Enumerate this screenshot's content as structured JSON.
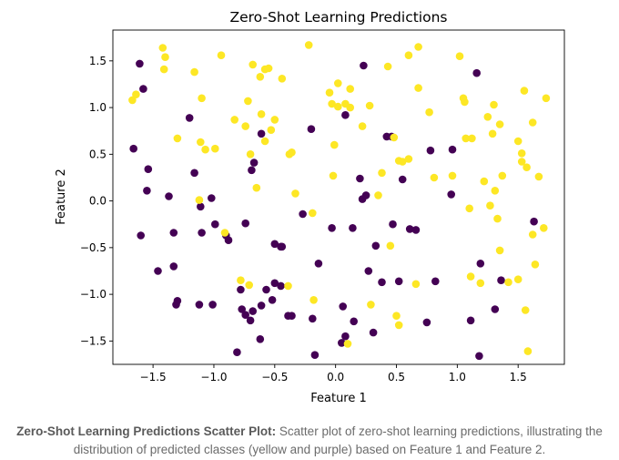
{
  "chart_data": {
    "type": "scatter",
    "title": "Zero-Shot Learning Predictions",
    "xlabel": "Feature 1",
    "ylabel": "Feature 2",
    "xlim": [
      -1.83,
      1.88
    ],
    "ylim": [
      -1.75,
      1.83
    ],
    "xticks": [
      "−1.5",
      "−1.0",
      "−0.5",
      "0.0",
      "0.5",
      "1.0",
      "1.5"
    ],
    "xtick_values": [
      -1.5,
      -1.0,
      -0.5,
      0.0,
      0.5,
      1.0,
      1.5
    ],
    "yticks": [
      "−1.5",
      "−1.0",
      "−0.5",
      "0.0",
      "0.5",
      "1.0",
      "1.5"
    ],
    "ytick_values": [
      -1.5,
      -1.0,
      -0.5,
      0.0,
      0.5,
      1.0,
      1.5
    ],
    "grid": false,
    "legend": "none",
    "series": [
      {
        "color": "#440154",
        "points": [
          [
            -1.66,
            0.56
          ],
          [
            -1.61,
            1.47
          ],
          [
            -1.58,
            1.2
          ],
          [
            -1.6,
            -0.37
          ],
          [
            -1.54,
            0.34
          ],
          [
            -1.55,
            0.11
          ],
          [
            -1.46,
            -0.75
          ],
          [
            -1.37,
            0.05
          ],
          [
            -1.33,
            -0.7
          ],
          [
            -1.31,
            -1.11
          ],
          [
            -1.3,
            -1.07
          ],
          [
            -1.33,
            -0.34
          ],
          [
            -1.2,
            0.89
          ],
          [
            -1.16,
            0.3
          ],
          [
            -1.12,
            -1.11
          ],
          [
            -1.11,
            -0.06
          ],
          [
            -1.1,
            -0.34
          ],
          [
            -1.02,
            0.03
          ],
          [
            -1.01,
            -1.11
          ],
          [
            -0.99,
            -0.25
          ],
          [
            -0.9,
            -0.37
          ],
          [
            -0.88,
            -0.42
          ],
          [
            -0.81,
            -1.62
          ],
          [
            -0.78,
            -0.95
          ],
          [
            -0.77,
            -1.16
          ],
          [
            -0.74,
            -1.22
          ],
          [
            -0.74,
            -0.24
          ],
          [
            -0.7,
            -1.28
          ],
          [
            -0.68,
            -1.18
          ],
          [
            -0.69,
            0.33
          ],
          [
            -0.67,
            0.41
          ],
          [
            -0.62,
            -1.48
          ],
          [
            -0.61,
            -1.12
          ],
          [
            -0.61,
            0.72
          ],
          [
            -0.57,
            -0.95
          ],
          [
            -0.52,
            -1.06
          ],
          [
            -0.5,
            -0.46
          ],
          [
            -0.5,
            -0.88
          ],
          [
            -0.45,
            -0.91
          ],
          [
            -0.45,
            -0.49
          ],
          [
            -0.44,
            -0.49
          ],
          [
            -0.39,
            -1.23
          ],
          [
            -0.36,
            -1.23
          ],
          [
            -0.27,
            -0.14
          ],
          [
            -0.19,
            -1.26
          ],
          [
            -0.14,
            -0.67
          ],
          [
            -0.17,
            -1.65
          ],
          [
            -0.2,
            0.77
          ],
          [
            -0.03,
            -0.29
          ],
          [
            0.06,
            -1.13
          ],
          [
            0.05,
            -1.52
          ],
          [
            0.08,
            -1.45
          ],
          [
            0.08,
            0.92
          ],
          [
            0.14,
            -0.29
          ],
          [
            0.15,
            -1.29
          ],
          [
            0.2,
            0.24
          ],
          [
            0.23,
            1.45
          ],
          [
            0.22,
            0.02
          ],
          [
            0.25,
            0.06
          ],
          [
            0.27,
            -0.75
          ],
          [
            0.33,
            -0.48
          ],
          [
            0.31,
            -1.41
          ],
          [
            0.38,
            -0.87
          ],
          [
            0.42,
            0.69
          ],
          [
            0.46,
            0.69
          ],
          [
            0.47,
            -0.25
          ],
          [
            0.55,
            0.23
          ],
          [
            0.52,
            -0.86
          ],
          [
            0.61,
            -0.3
          ],
          [
            0.66,
            -0.31
          ],
          [
            0.75,
            -1.3
          ],
          [
            0.78,
            0.54
          ],
          [
            0.82,
            -0.86
          ],
          [
            0.96,
            0.55
          ],
          [
            0.95,
            0.07
          ],
          [
            1.11,
            -1.28
          ],
          [
            1.16,
            1.37
          ],
          [
            1.18,
            -1.66
          ],
          [
            1.19,
            -0.67
          ],
          [
            1.31,
            -1.16
          ],
          [
            1.36,
            -0.85
          ],
          [
            1.63,
            -0.22
          ]
        ]
      },
      {
        "color": "#fde725",
        "points": [
          [
            -1.67,
            1.08
          ],
          [
            -1.64,
            1.14
          ],
          [
            -1.42,
            1.64
          ],
          [
            -1.4,
            1.54
          ],
          [
            -1.41,
            1.41
          ],
          [
            -1.3,
            0.67
          ],
          [
            -1.16,
            1.38
          ],
          [
            -1.12,
            0.01
          ],
          [
            -1.11,
            0.63
          ],
          [
            -1.1,
            1.1
          ],
          [
            -1.07,
            0.55
          ],
          [
            -0.99,
            0.56
          ],
          [
            -0.94,
            1.56
          ],
          [
            -0.91,
            -0.34
          ],
          [
            -0.83,
            0.87
          ],
          [
            -0.78,
            -0.85
          ],
          [
            -0.74,
            0.8
          ],
          [
            -0.72,
            1.07
          ],
          [
            -0.71,
            -0.9
          ],
          [
            -0.7,
            0.5
          ],
          [
            -0.68,
            1.46
          ],
          [
            -0.65,
            0.14
          ],
          [
            -0.62,
            1.33
          ],
          [
            -0.61,
            0.93
          ],
          [
            -0.58,
            0.64
          ],
          [
            -0.58,
            1.41
          ],
          [
            -0.55,
            1.42
          ],
          [
            -0.53,
            0.76
          ],
          [
            -0.5,
            0.87
          ],
          [
            -0.44,
            1.31
          ],
          [
            -0.39,
            -0.91
          ],
          [
            -0.38,
            0.5
          ],
          [
            -0.36,
            0.52
          ],
          [
            -0.33,
            0.08
          ],
          [
            -0.18,
            -1.06
          ],
          [
            -0.19,
            -0.13
          ],
          [
            -0.22,
            1.67
          ],
          [
            -0.05,
            1.16
          ],
          [
            -0.03,
            1.04
          ],
          [
            0.02,
            1.01
          ],
          [
            -0.01,
            0.6
          ],
          [
            -0.02,
            0.27
          ],
          [
            0.02,
            1.26
          ],
          [
            0.08,
            1.04
          ],
          [
            0.1,
            -1.53
          ],
          [
            0.12,
            1.2
          ],
          [
            0.12,
            1.0
          ],
          [
            0.22,
            0.8
          ],
          [
            0.28,
            1.02
          ],
          [
            0.29,
            -1.11
          ],
          [
            0.35,
            0.06
          ],
          [
            0.38,
            0.3
          ],
          [
            0.43,
            1.44
          ],
          [
            0.45,
            -0.48
          ],
          [
            0.48,
            0.68
          ],
          [
            0.5,
            -1.23
          ],
          [
            0.52,
            -1.33
          ],
          [
            0.52,
            0.43
          ],
          [
            0.55,
            0.42
          ],
          [
            0.6,
            1.56
          ],
          [
            0.6,
            0.45
          ],
          [
            0.66,
            -0.89
          ],
          [
            0.68,
            1.65
          ],
          [
            0.68,
            1.21
          ],
          [
            0.77,
            0.95
          ],
          [
            0.81,
            0.25
          ],
          [
            0.96,
            0.27
          ],
          [
            1.02,
            1.55
          ],
          [
            1.05,
            1.1
          ],
          [
            1.07,
            0.67
          ],
          [
            1.06,
            1.06
          ],
          [
            1.1,
            -0.08
          ],
          [
            1.11,
            -0.81
          ],
          [
            1.12,
            0.67
          ],
          [
            1.19,
            -0.88
          ],
          [
            1.22,
            0.21
          ],
          [
            1.25,
            0.9
          ],
          [
            1.27,
            -0.05
          ],
          [
            1.29,
            0.72
          ],
          [
            1.3,
            1.03
          ],
          [
            1.31,
            0.11
          ],
          [
            1.33,
            -0.19
          ],
          [
            1.35,
            0.82
          ],
          [
            1.35,
            -0.53
          ],
          [
            1.37,
            0.27
          ],
          [
            1.42,
            -0.87
          ],
          [
            1.5,
            -0.84
          ],
          [
            1.5,
            0.64
          ],
          [
            1.53,
            0.51
          ],
          [
            1.53,
            0.42
          ],
          [
            1.55,
            1.18
          ],
          [
            1.56,
            -1.17
          ],
          [
            1.58,
            -1.61
          ],
          [
            1.57,
            0.36
          ],
          [
            1.62,
            0.84
          ],
          [
            1.62,
            -0.36
          ],
          [
            1.64,
            -0.68
          ],
          [
            1.67,
            0.26
          ],
          [
            1.71,
            -0.29
          ],
          [
            1.73,
            1.1
          ]
        ]
      }
    ]
  },
  "caption": {
    "bold": "Zero-Shot Learning Predictions Scatter Plot:",
    "text": " Scatter plot of zero-shot learning predictions, illustrating the distribution of predicted classes (yellow and purple) based on Feature 1 and Feature 2."
  }
}
